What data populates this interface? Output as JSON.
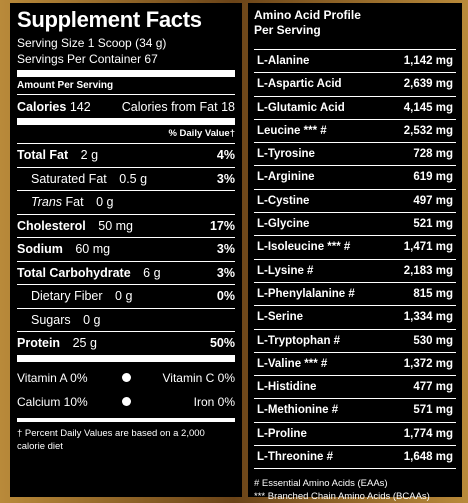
{
  "left": {
    "title": "Supplement Facts",
    "serving_size": "Serving Size 1 Scoop (34 g)",
    "servings": "Servings Per Container 67",
    "amount_per_serving": "Amount Per Serving",
    "calories": {
      "label": "Calories",
      "value": "142",
      "fat_label": "Calories from Fat",
      "fat_value": "18"
    },
    "dv_header": "% Daily Value†",
    "nutrients": [
      {
        "name": "Total Fat",
        "amount": "2 g",
        "dv": "4%"
      },
      {
        "name": "Saturated Fat",
        "amount": "0.5 g",
        "dv": "3%"
      },
      {
        "prefix": "Trans",
        "name": "Fat",
        "amount": "0 g"
      },
      {
        "name": "Cholesterol",
        "amount": "50 mg",
        "dv": "17%"
      },
      {
        "name": "Sodium",
        "amount": "60 mg",
        "dv": "3%"
      },
      {
        "name": "Total Carbohydrate",
        "amount": "6 g",
        "dv": "3%"
      },
      {
        "name": "Dietary Fiber",
        "amount": "0 g",
        "dv": "0%"
      },
      {
        "name": "Sugars",
        "amount": "0 g"
      },
      {
        "name": "Protein",
        "amount": "25 g",
        "dv": "50%"
      }
    ],
    "vitamins": [
      [
        "Vitamin A  0%",
        "Vitamin C  0%"
      ],
      [
        "Calcium  10%",
        "Iron  0%"
      ]
    ],
    "footnote": "† Percent Daily Values are based on a 2,000 calorie diet"
  },
  "right": {
    "title": [
      "Amino Acid Profile",
      "Per Serving"
    ],
    "rows": [
      [
        "L-Alanine",
        "1,142 mg"
      ],
      [
        "L-Aspartic Acid",
        "2,639 mg"
      ],
      [
        "L-Glutamic Acid",
        "4,145 mg"
      ],
      [
        "Leucine *** #",
        "2,532 mg"
      ],
      [
        "L-Tyrosine",
        "728 mg"
      ],
      [
        "L-Arginine",
        "619 mg"
      ],
      [
        "L-Cystine",
        "497 mg"
      ],
      [
        "L-Glycine",
        "521 mg"
      ],
      [
        "L-Isoleucine *** #",
        "1,471 mg"
      ],
      [
        "L-Lysine #",
        "2,183 mg"
      ],
      [
        "L-Phenylalanine #",
        "815 mg"
      ],
      [
        "L-Serine",
        "1,334 mg"
      ],
      [
        "L-Tryptophan #",
        "530 mg"
      ],
      [
        "L-Valine *** #",
        "1,372 mg"
      ],
      [
        "L-Histidine",
        "477 mg"
      ],
      [
        "L-Methionine #",
        "571 mg"
      ],
      [
        "L-Proline",
        "1,774 mg"
      ],
      [
        "L-Threonine #",
        "1,648 mg"
      ]
    ],
    "footnotes": [
      "#  Essential Amino Acids (EAAs)",
      "*** Branched Chain Amino Acids (BCAAs)"
    ]
  }
}
